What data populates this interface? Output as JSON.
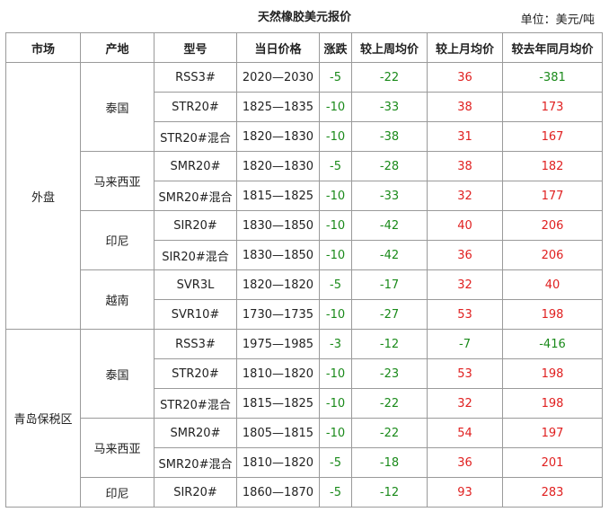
{
  "title": "天然橡胶美元报价",
  "unit": "单位：美元/吨",
  "colors": {
    "negative": "#1a8a1a",
    "positive": "#e02020",
    "border": "#9a9a9a"
  },
  "headers": [
    "市场",
    "产地",
    "型号",
    "当日价格",
    "涨跌",
    "较上周均价",
    "较上月均价",
    "较去年同月均价"
  ],
  "rows": [
    {
      "market": "外盘",
      "market_span": 9,
      "origin": "泰国",
      "origin_span": 3,
      "model": "RSS3#",
      "price": "2020—2030",
      "change": "-5",
      "vs_week": "-22",
      "vs_month": "36",
      "vs_last_year": "-381"
    },
    {
      "model": "STR20#",
      "price": "1825—1835",
      "change": "-10",
      "vs_week": "-33",
      "vs_month": "38",
      "vs_last_year": "173"
    },
    {
      "model": "STR20#混合",
      "price": "1820—1830",
      "change": "-10",
      "vs_week": "-38",
      "vs_month": "31",
      "vs_last_year": "167"
    },
    {
      "origin": "马来西亚",
      "origin_span": 2,
      "model": "SMR20#",
      "price": "1820—1830",
      "change": "-5",
      "vs_week": "-28",
      "vs_month": "38",
      "vs_last_year": "182"
    },
    {
      "model": "SMR20#混合",
      "price": "1815—1825",
      "change": "-10",
      "vs_week": "-33",
      "vs_month": "32",
      "vs_last_year": "177"
    },
    {
      "origin": "印尼",
      "origin_span": 2,
      "model": "SIR20#",
      "price": "1830—1850",
      "change": "-10",
      "vs_week": "-42",
      "vs_month": "40",
      "vs_last_year": "206"
    },
    {
      "model": "SIR20#混合",
      "price": "1830—1850",
      "change": "-10",
      "vs_week": "-42",
      "vs_month": "36",
      "vs_last_year": "206"
    },
    {
      "origin": "越南",
      "origin_span": 2,
      "model": "SVR3L",
      "price": "1820—1820",
      "change": "-5",
      "vs_week": "-17",
      "vs_month": "32",
      "vs_last_year": "40"
    },
    {
      "model": "SVR10#",
      "price": "1730—1735",
      "change": "-10",
      "vs_week": "-27",
      "vs_month": "53",
      "vs_last_year": "198"
    },
    {
      "market": "青岛保税区",
      "market_span": 6,
      "origin": "泰国",
      "origin_span": 3,
      "model": "RSS3#",
      "price": "1975—1985",
      "change": "-3",
      "vs_week": "-12",
      "vs_month": "-7",
      "vs_last_year": "-416"
    },
    {
      "model": "STR20#",
      "price": "1810—1820",
      "change": "-10",
      "vs_week": "-23",
      "vs_month": "53",
      "vs_last_year": "198"
    },
    {
      "model": "STR20#混合",
      "price": "1815—1825",
      "change": "-10",
      "vs_week": "-22",
      "vs_month": "32",
      "vs_last_year": "198"
    },
    {
      "origin": "马来西亚",
      "origin_span": 2,
      "model": "SMR20#",
      "price": "1805—1815",
      "change": "-10",
      "vs_week": "-22",
      "vs_month": "54",
      "vs_last_year": "197"
    },
    {
      "model": "SMR20#混合",
      "price": "1810—1820",
      "change": "-5",
      "vs_week": "-18",
      "vs_month": "36",
      "vs_last_year": "201"
    },
    {
      "origin": "印尼",
      "origin_span": 1,
      "model": "SIR20#",
      "price": "1860—1870",
      "change": "-5",
      "vs_week": "-12",
      "vs_month": "93",
      "vs_last_year": "283"
    }
  ]
}
